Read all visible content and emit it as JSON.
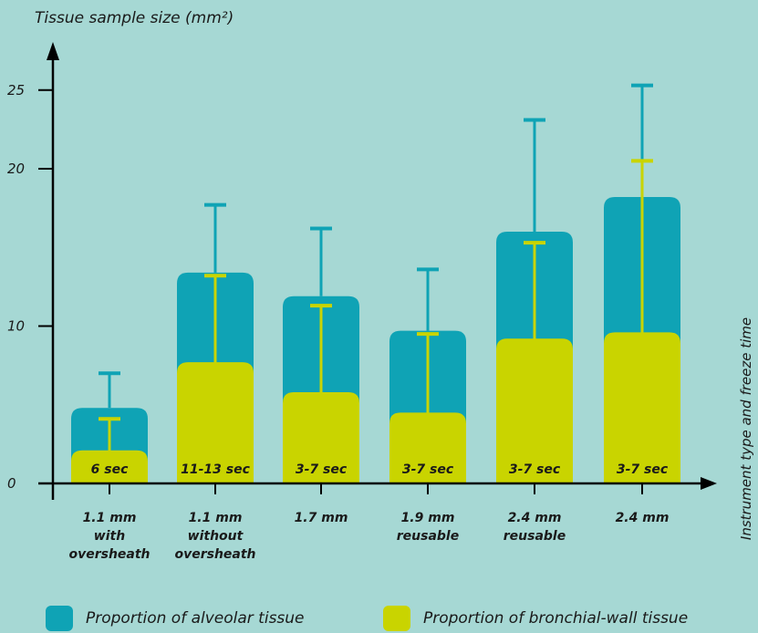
{
  "chart_data": {
    "type": "bar",
    "ylabel": "Tissue sample size (mm²)",
    "xlabel": "Instrument type and freeze time",
    "yticks": [
      0,
      10,
      20,
      25
    ],
    "categories": [
      [
        "1.1 mm",
        "with",
        "oversheath"
      ],
      [
        "1.1 mm",
        "without",
        "oversheath"
      ],
      [
        "1.7 mm"
      ],
      [
        "1.9 mm",
        "reusable"
      ],
      [
        "2.4 mm",
        "reusable"
      ],
      [
        "2.4 mm"
      ]
    ],
    "freeze_times": [
      "6 sec",
      "11-13 sec",
      "3-7 sec",
      "3-7 sec",
      "3-7 sec",
      "3-7 sec"
    ],
    "series": [
      {
        "name": "Proportion of alveolar tissue",
        "color": "#0fa3b5",
        "values": [
          4.8,
          13.4,
          11.9,
          9.7,
          16.0,
          18.2
        ],
        "error_upper": [
          7.0,
          17.7,
          16.2,
          13.6,
          23.1,
          25.3
        ]
      },
      {
        "name": "Proportion of bronchial-wall tissue",
        "color": "#c9d400",
        "values": [
          2.1,
          7.7,
          5.8,
          4.5,
          9.2,
          9.6
        ],
        "error_upper": [
          4.1,
          13.2,
          11.3,
          9.5,
          15.3,
          20.5
        ]
      }
    ]
  }
}
